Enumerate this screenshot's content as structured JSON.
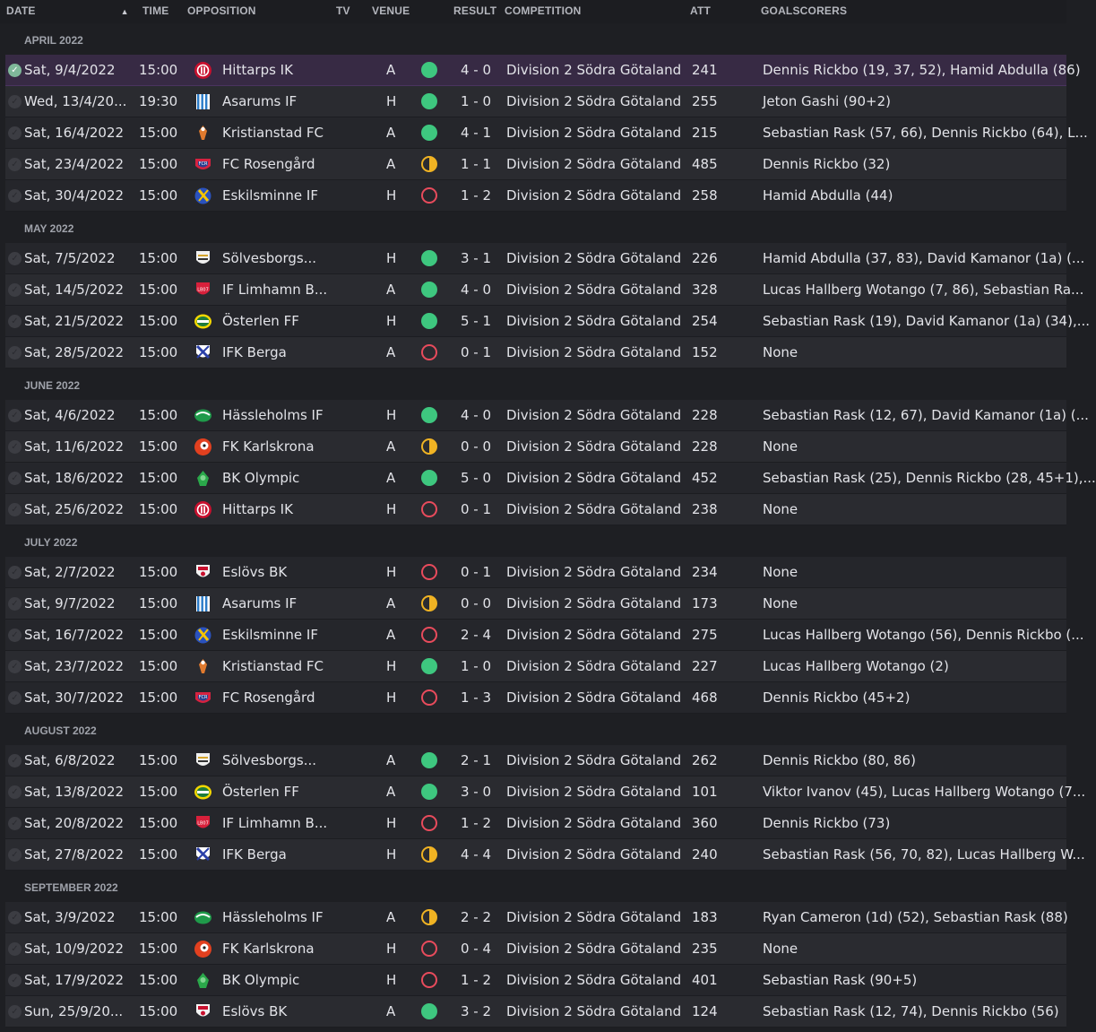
{
  "header": {
    "date": "DATE",
    "time": "TIME",
    "opposition": "OPPOSITION",
    "tv": "TV",
    "venue": "VENUE",
    "result": "RESULT",
    "competition": "COMPETITION",
    "att": "ATT",
    "goalscorers": "GOALSCORERS",
    "sort_icon": "▲"
  },
  "colors": {
    "win": "#3ec77f",
    "draw": "#f0b323",
    "loss": "#e84b5c",
    "selected_row": "#372a44"
  },
  "months": [
    {
      "label": "APRIL 2022",
      "fixtures": [
        {
          "date": "Sat, 9/4/2022",
          "time": "15:00",
          "opp": "Hittarps IK",
          "badge": "hittarps",
          "venue": "A",
          "res": "win",
          "score": "4 - 0",
          "comp": "Division 2 Södra Götaland",
          "att": "241",
          "goals": "Dennis Rickbo (19, 37, 52), Hamid Abdulla (86)",
          "selected": true
        },
        {
          "date": "Wed, 13/4/20...",
          "time": "19:30",
          "opp": "Asarums IF",
          "badge": "asarums",
          "venue": "H",
          "res": "win",
          "score": "1 - 0",
          "comp": "Division 2 Södra Götaland",
          "att": "255",
          "goals": "Jeton Gashi (90+2)"
        },
        {
          "date": "Sat, 16/4/2022",
          "time": "15:00",
          "opp": "Kristianstad FC",
          "badge": "kristianstad",
          "venue": "A",
          "res": "win",
          "score": "4 - 1",
          "comp": "Division 2 Södra Götaland",
          "att": "215",
          "goals": "Sebastian Rask (57, 66), Dennis Rickbo (64), L..."
        },
        {
          "date": "Sat, 23/4/2022",
          "time": "15:00",
          "opp": "FC Rosengård",
          "badge": "rosengard",
          "venue": "A",
          "res": "draw",
          "score": "1 - 1",
          "comp": "Division 2 Södra Götaland",
          "att": "485",
          "goals": "Dennis Rickbo (32)"
        },
        {
          "date": "Sat, 30/4/2022",
          "time": "15:00",
          "opp": "Eskilsminne IF",
          "badge": "eskilsminne",
          "venue": "H",
          "res": "loss",
          "score": "1 - 2",
          "comp": "Division 2 Södra Götaland",
          "att": "258",
          "goals": "Hamid Abdulla (44)"
        }
      ]
    },
    {
      "label": "MAY 2022",
      "fixtures": [
        {
          "date": "Sat, 7/5/2022",
          "time": "15:00",
          "opp": "Sölvesborgs...",
          "badge": "solvesborgs",
          "venue": "H",
          "res": "win",
          "score": "3 - 1",
          "comp": "Division 2 Södra Götaland",
          "att": "226",
          "goals": "Hamid Abdulla (37, 83), David Kamanor (1a) (..."
        },
        {
          "date": "Sat, 14/5/2022",
          "time": "15:00",
          "opp": "IF Limhamn B...",
          "badge": "limhamn",
          "venue": "A",
          "res": "win",
          "score": "4 - 0",
          "comp": "Division 2 Södra Götaland",
          "att": "328",
          "goals": "Lucas Hallberg Wotango (7, 86), Sebastian Ra..."
        },
        {
          "date": "Sat, 21/5/2022",
          "time": "15:00",
          "opp": "Österlen FF",
          "badge": "osterlen",
          "venue": "H",
          "res": "win",
          "score": "5 - 1",
          "comp": "Division 2 Södra Götaland",
          "att": "254",
          "goals": "Sebastian Rask (19), David Kamanor (1a) (34),..."
        },
        {
          "date": "Sat, 28/5/2022",
          "time": "15:00",
          "opp": "IFK Berga",
          "badge": "berga",
          "venue": "A",
          "res": "loss",
          "score": "0 - 1",
          "comp": "Division 2 Södra Götaland",
          "att": "152",
          "goals": "None"
        }
      ]
    },
    {
      "label": "JUNE 2022",
      "fixtures": [
        {
          "date": "Sat, 4/6/2022",
          "time": "15:00",
          "opp": "Hässleholms IF",
          "badge": "hassleholms",
          "venue": "H",
          "res": "win",
          "score": "4 - 0",
          "comp": "Division 2 Södra Götaland",
          "att": "228",
          "goals": "Sebastian Rask (12, 67), David Kamanor (1a) (..."
        },
        {
          "date": "Sat, 11/6/2022",
          "time": "15:00",
          "opp": "FK Karlskrona",
          "badge": "karlskrona",
          "venue": "A",
          "res": "draw",
          "score": "0 - 0",
          "comp": "Division 2 Södra Götaland",
          "att": "228",
          "goals": "None"
        },
        {
          "date": "Sat, 18/6/2022",
          "time": "15:00",
          "opp": "BK Olympic",
          "badge": "olympic",
          "venue": "A",
          "res": "win",
          "score": "5 - 0",
          "comp": "Division 2 Södra Götaland",
          "att": "452",
          "goals": "Sebastian Rask (25), Dennis Rickbo (28, 45+1),..."
        },
        {
          "date": "Sat, 25/6/2022",
          "time": "15:00",
          "opp": "Hittarps IK",
          "badge": "hittarps",
          "venue": "H",
          "res": "loss",
          "score": "0 - 1",
          "comp": "Division 2 Södra Götaland",
          "att": "238",
          "goals": "None"
        }
      ]
    },
    {
      "label": "JULY 2022",
      "fixtures": [
        {
          "date": "Sat, 2/7/2022",
          "time": "15:00",
          "opp": "Eslövs BK",
          "badge": "eslovs",
          "venue": "H",
          "res": "loss",
          "score": "0 - 1",
          "comp": "Division 2 Södra Götaland",
          "att": "234",
          "goals": "None"
        },
        {
          "date": "Sat, 9/7/2022",
          "time": "15:00",
          "opp": "Asarums IF",
          "badge": "asarums",
          "venue": "A",
          "res": "draw",
          "score": "0 - 0",
          "comp": "Division 2 Södra Götaland",
          "att": "173",
          "goals": "None"
        },
        {
          "date": "Sat, 16/7/2022",
          "time": "15:00",
          "opp": "Eskilsminne IF",
          "badge": "eskilsminne",
          "venue": "A",
          "res": "loss",
          "score": "2 - 4",
          "comp": "Division 2 Södra Götaland",
          "att": "275",
          "goals": "Lucas Hallberg Wotango (56), Dennis Rickbo (..."
        },
        {
          "date": "Sat, 23/7/2022",
          "time": "15:00",
          "opp": "Kristianstad FC",
          "badge": "kristianstad",
          "venue": "H",
          "res": "win",
          "score": "1 - 0",
          "comp": "Division 2 Södra Götaland",
          "att": "227",
          "goals": "Lucas Hallberg Wotango (2)"
        },
        {
          "date": "Sat, 30/7/2022",
          "time": "15:00",
          "opp": "FC Rosengård",
          "badge": "rosengard",
          "venue": "H",
          "res": "loss",
          "score": "1 - 3",
          "comp": "Division 2 Södra Götaland",
          "att": "468",
          "goals": "Dennis Rickbo (45+2)"
        }
      ]
    },
    {
      "label": "AUGUST 2022",
      "fixtures": [
        {
          "date": "Sat, 6/8/2022",
          "time": "15:00",
          "opp": "Sölvesborgs...",
          "badge": "solvesborgs",
          "venue": "A",
          "res": "win",
          "score": "2 - 1",
          "comp": "Division 2 Södra Götaland",
          "att": "262",
          "goals": "Dennis Rickbo (80, 86)"
        },
        {
          "date": "Sat, 13/8/2022",
          "time": "15:00",
          "opp": "Österlen FF",
          "badge": "osterlen",
          "venue": "A",
          "res": "win",
          "score": "3 - 0",
          "comp": "Division 2 Södra Götaland",
          "att": "101",
          "goals": "Viktor Ivanov (45), Lucas Hallberg Wotango (7..."
        },
        {
          "date": "Sat, 20/8/2022",
          "time": "15:00",
          "opp": "IF Limhamn B...",
          "badge": "limhamn",
          "venue": "H",
          "res": "loss",
          "score": "1 - 2",
          "comp": "Division 2 Södra Götaland",
          "att": "360",
          "goals": "Dennis Rickbo (73)"
        },
        {
          "date": "Sat, 27/8/2022",
          "time": "15:00",
          "opp": "IFK Berga",
          "badge": "berga",
          "venue": "H",
          "res": "draw",
          "score": "4 - 4",
          "comp": "Division 2 Södra Götaland",
          "att": "240",
          "goals": "Sebastian Rask (56, 70, 82), Lucas Hallberg W..."
        }
      ]
    },
    {
      "label": "SEPTEMBER 2022",
      "fixtures": [
        {
          "date": "Sat, 3/9/2022",
          "time": "15:00",
          "opp": "Hässleholms IF",
          "badge": "hassleholms",
          "venue": "A",
          "res": "draw",
          "score": "2 - 2",
          "comp": "Division 2 Södra Götaland",
          "att": "183",
          "goals": "Ryan Cameron (1d) (52), Sebastian Rask (88)"
        },
        {
          "date": "Sat, 10/9/2022",
          "time": "15:00",
          "opp": "FK Karlskrona",
          "badge": "karlskrona",
          "venue": "H",
          "res": "loss",
          "score": "0 - 4",
          "comp": "Division 2 Södra Götaland",
          "att": "235",
          "goals": "None"
        },
        {
          "date": "Sat, 17/9/2022",
          "time": "15:00",
          "opp": "BK Olympic",
          "badge": "olympic",
          "venue": "H",
          "res": "loss",
          "score": "1 - 2",
          "comp": "Division 2 Södra Götaland",
          "att": "401",
          "goals": "Sebastian Rask (90+5)"
        },
        {
          "date": "Sun, 25/9/20...",
          "time": "15:00",
          "opp": "Eslövs BK",
          "badge": "eslovs",
          "venue": "A",
          "res": "win",
          "score": "3 - 2",
          "comp": "Division 2 Södra Götaland",
          "att": "124",
          "goals": "Sebastian Rask (12, 74), Dennis Rickbo (56)"
        }
      ]
    }
  ]
}
